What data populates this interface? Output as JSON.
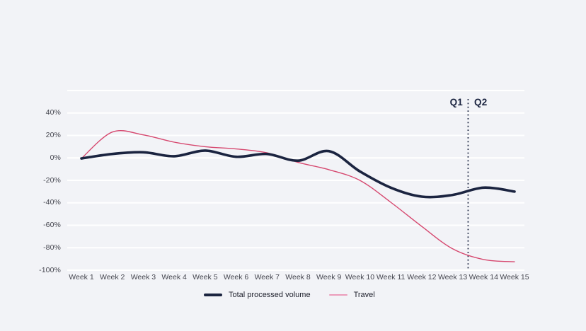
{
  "colors": {
    "background": "#f2f3f7",
    "gridline": "#ffffff",
    "total_line": "#1b2440",
    "travel_line": "#d6486f",
    "legend_travel_swatch": "#eb9cba",
    "axis_label": "#45464f",
    "annotation_text": "#1b2440",
    "divider_line": "#1b2440"
  },
  "chart_data": {
    "type": "line",
    "title": "",
    "categories": [
      "Week 1",
      "Week 2",
      "Week 3",
      "Week 4",
      "Week 5",
      "Week 6",
      "Week 7",
      "Week 8",
      "Week 9",
      "Week 10",
      "Week 11",
      "Week 12",
      "Week 13",
      "Week 14",
      "Week 15"
    ],
    "series": [
      {
        "name": "Total processed volume",
        "color": "#1b2440",
        "stroke_width": 3.6,
        "values": [
          -0.5,
          3.5,
          5,
          1.5,
          6.5,
          1,
          3.5,
          -2.5,
          6,
          -12,
          -26.5,
          -34.5,
          -33,
          -26.5,
          -30
        ]
      },
      {
        "name": "Travel",
        "color": "#d6486f",
        "stroke_width": 1.4,
        "values": [
          -0.5,
          23,
          20.5,
          14,
          10,
          8,
          4.5,
          -4,
          -10.5,
          -20,
          -39.5,
          -61,
          -81,
          -90.5,
          -92.5
        ]
      }
    ],
    "ylim": [
      -100,
      60
    ],
    "unit": "%",
    "grid_values": [
      60,
      40,
      20,
      0,
      -20,
      -40,
      -60,
      -80,
      -100
    ],
    "y_tick_values": [
      40,
      20,
      0,
      -20,
      -40,
      -60,
      -80,
      -100
    ],
    "y_tick_labels": [
      "40%",
      "20%",
      "0%",
      "-20%",
      "-40%",
      "-60%",
      "-80%",
      "-100%"
    ],
    "grid": true,
    "legend_position": "bottom-center",
    "annotations": {
      "label_left": "Q1",
      "label_right": "Q2",
      "divider_between_categories": [
        "Week 13",
        "Week 14"
      ]
    }
  }
}
